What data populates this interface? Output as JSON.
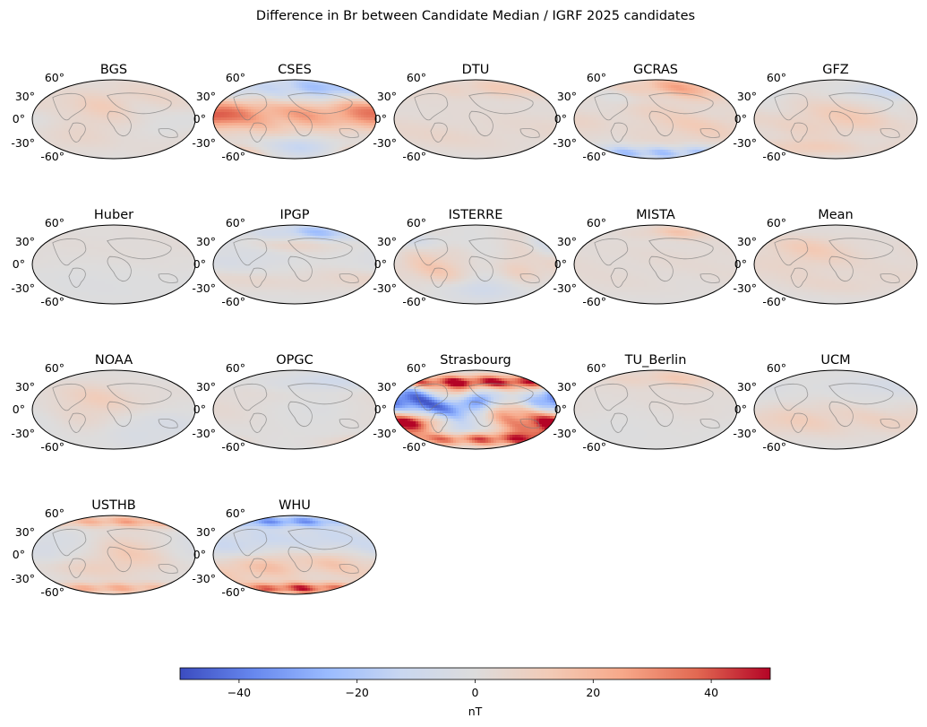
{
  "chart_data": {
    "type": "heatmap",
    "projection": "mollweide",
    "title": "Difference in Br between Candidate Median / IGRF 2025 candidates",
    "lat_labels": [
      "60°",
      "30°",
      "0°",
      "-30°",
      "-60°"
    ],
    "colorbar": {
      "label": "nT",
      "vmin": -50,
      "vmax": 50,
      "ticks": [
        -40,
        -20,
        0,
        20,
        40
      ],
      "tick_labels": [
        "−40",
        "−20",
        "0",
        "20",
        "40"
      ],
      "colormap": "coolwarm",
      "stops": [
        "#3b4cc0",
        "#6788ee",
        "#9abbff",
        "#c9d7f0",
        "#dddcdc",
        "#f2cbb7",
        "#f7a889",
        "#e26952",
        "#b40426"
      ]
    },
    "panels": [
      {
        "name": "BGS",
        "max_abs_nT": 10,
        "features": [
          [
            90,
            0.55,
            0.85,
            0.35,
            0.08,
            6
          ],
          [
            55,
            0.3,
            0.2,
            0.2,
            0.05,
            -4
          ],
          [
            130,
            -0.1,
            0.4,
            0.3,
            0.07,
            -5
          ],
          [
            0,
            0,
            0.5,
            0.4,
            0.05,
            4
          ],
          [
            200,
            -0.6,
            0.6,
            0.3,
            0.05,
            5
          ],
          [
            -40,
            0.2,
            0.4,
            0.3,
            0.05,
            4
          ]
        ]
      },
      {
        "name": "CSES",
        "max_abs_nT": 25,
        "features": [
          [
            30,
            0.75,
            0.8,
            0.25,
            0.12,
            -16
          ],
          [
            120,
            0.8,
            0.5,
            0.2,
            0.05,
            -10
          ],
          [
            240,
            0.15,
            1.6,
            0.35,
            0.1,
            14
          ],
          [
            150,
            0.25,
            0.5,
            0.25,
            0.07,
            12
          ],
          [
            -10,
            0,
            0.4,
            0.3,
            0.05,
            9
          ],
          [
            190,
            -0.88,
            0.35,
            0.12,
            0.1,
            22
          ],
          [
            10,
            -0.7,
            0.3,
            0.2,
            0.05,
            -12
          ],
          [
            200,
            0.1,
            0.3,
            0.2,
            0.05,
            16
          ]
        ]
      },
      {
        "name": "DTU",
        "max_abs_nT": 8,
        "features": [
          [
            40,
            0.8,
            0.8,
            0.2,
            0.12,
            7
          ],
          [
            110,
            0.8,
            0.4,
            0.15,
            0.05,
            5
          ],
          [
            180,
            -0.1,
            1.6,
            0.5,
            0.04,
            3
          ],
          [
            300,
            -0.5,
            0.8,
            0.3,
            0.04,
            3
          ]
        ]
      },
      {
        "name": "GCRAS",
        "max_abs_nT": 25,
        "features": [
          [
            50,
            0.82,
            0.55,
            0.18,
            0.1,
            20
          ],
          [
            20,
            -0.85,
            1.2,
            0.12,
            0.15,
            -22
          ],
          [
            90,
            -0.1,
            0.6,
            0.5,
            0.06,
            10
          ],
          [
            -80,
            0.6,
            0.4,
            0.2,
            0.06,
            -8
          ],
          [
            210,
            0.4,
            0.8,
            0.3,
            0.05,
            6
          ],
          [
            150,
            0.25,
            0.4,
            0.2,
            0.05,
            -8
          ]
        ]
      },
      {
        "name": "GFZ",
        "max_abs_nT": 15,
        "features": [
          [
            190,
            0.2,
            2,
            0.3,
            0.08,
            -6
          ],
          [
            -60,
            0.1,
            0.8,
            0.4,
            0.07,
            10
          ],
          [
            40,
            0.05,
            0.5,
            0.3,
            0.05,
            8
          ],
          [
            120,
            0.7,
            0.4,
            0.15,
            0.05,
            -10
          ],
          [
            250,
            -0.75,
            0.6,
            0.15,
            0.05,
            12
          ]
        ]
      },
      {
        "name": "Huber",
        "max_abs_nT": 6,
        "features": [
          [
            120,
            0.3,
            2,
            0.6,
            0.05,
            2
          ],
          [
            300,
            -0.4,
            1,
            0.4,
            0.05,
            -2
          ]
        ]
      },
      {
        "name": "IPGP",
        "max_abs_nT": 25,
        "features": [
          [
            70,
            0.8,
            0.5,
            0.15,
            0.1,
            -22
          ],
          [
            20,
            0.55,
            0.4,
            0.15,
            0.05,
            10
          ],
          [
            160,
            -0.4,
            1,
            0.2,
            0.05,
            6
          ],
          [
            240,
            0.1,
            0.4,
            0.3,
            0.05,
            -5
          ]
        ]
      },
      {
        "name": "ISTERRE",
        "max_abs_nT": 20,
        "features": [
          [
            240,
            0.2,
            0.6,
            0.4,
            0.08,
            12
          ],
          [
            0,
            0,
            0.5,
            0.5,
            0.06,
            -10
          ],
          [
            95,
            0.1,
            0.25,
            0.5,
            0.07,
            14
          ],
          [
            150,
            0.3,
            0.3,
            0.25,
            0.07,
            -12
          ],
          [
            300,
            -0.2,
            0.3,
            0.3,
            0.07,
            12
          ],
          [
            200,
            0.6,
            0.4,
            0.15,
            0.05,
            -8
          ],
          [
            50,
            -0.6,
            0.5,
            0.2,
            0.05,
            -6
          ]
        ]
      },
      {
        "name": "MISTA",
        "max_abs_nT": 15,
        "features": [
          [
            60,
            0.82,
            0.4,
            0.12,
            0.1,
            12
          ],
          [
            100,
            0.2,
            1.5,
            0.4,
            0.05,
            3
          ],
          [
            250,
            -0.5,
            0.8,
            0.3,
            0.04,
            2
          ]
        ]
      },
      {
        "name": "Mean",
        "max_abs_nT": 10,
        "features": [
          [
            190,
            0.1,
            1.6,
            0.5,
            0.05,
            3
          ],
          [
            -60,
            0.2,
            0.4,
            0.3,
            0.05,
            6
          ],
          [
            40,
            -0.5,
            0.6,
            0.2,
            0.04,
            4
          ],
          [
            300,
            0.5,
            0.4,
            0.2,
            0.05,
            4
          ]
        ]
      },
      {
        "name": "NOAA",
        "max_abs_nT": 10,
        "features": [
          [
            0,
            0.2,
            0.5,
            0.4,
            0.06,
            6
          ],
          [
            150,
            0.1,
            0.6,
            0.5,
            0.06,
            -4
          ],
          [
            210,
            0.3,
            0.6,
            0.3,
            0.05,
            5
          ],
          [
            60,
            -0.5,
            0.4,
            0.3,
            0.05,
            -4
          ],
          [
            300,
            -0.1,
            0.3,
            0.4,
            0.05,
            4
          ]
        ]
      },
      {
        "name": "OPGC",
        "max_abs_nT": 18,
        "features": [
          [
            160,
            -0.83,
            0.3,
            0.1,
            0.08,
            15
          ],
          [
            70,
            0.7,
            0.5,
            0.15,
            0.05,
            -8
          ],
          [
            250,
            0.1,
            1,
            0.4,
            0.05,
            4
          ],
          [
            20,
            0,
            0.5,
            0.3,
            0.04,
            -4
          ]
        ]
      },
      {
        "name": "Strasbourg",
        "max_abs_nT": 60,
        "features": [
          [
            80,
            0.1,
            0.3,
            0.3,
            0.12,
            45
          ],
          [
            -60,
            -0.1,
            0.3,
            0.4,
            0.12,
            -45
          ],
          [
            20,
            0.3,
            0.2,
            0.2,
            0.12,
            -40
          ],
          [
            120,
            0.2,
            0.3,
            0.2,
            0.12,
            -40
          ],
          [
            160,
            -0.4,
            0.3,
            0.2,
            0.12,
            45
          ],
          [
            220,
            0.3,
            0.3,
            0.25,
            0.12,
            -42
          ],
          [
            260,
            -0.3,
            0.3,
            0.2,
            0.12,
            45
          ],
          [
            300,
            0.4,
            0.3,
            0.2,
            0.12,
            40
          ],
          [
            0,
            0.7,
            1.4,
            0.12,
            0.15,
            45
          ],
          [
            0,
            -0.75,
            1.4,
            0.12,
            0.15,
            40
          ]
        ]
      },
      {
        "name": "TU_Berlin",
        "max_abs_nT": 12,
        "features": [
          [
            50,
            0.8,
            0.6,
            0.15,
            0.1,
            10
          ],
          [
            120,
            0.1,
            1.5,
            0.5,
            0.05,
            3
          ],
          [
            250,
            -0.3,
            0.8,
            0.4,
            0.05,
            -2
          ]
        ]
      },
      {
        "name": "UCM",
        "max_abs_nT": 10,
        "features": [
          [
            0,
            -0.2,
            1.2,
            0.3,
            0.08,
            6
          ],
          [
            220,
            -0.3,
            0.8,
            0.3,
            0.05,
            5
          ],
          [
            100,
            0.6,
            0.5,
            0.2,
            0.05,
            -4
          ],
          [
            150,
            0.1,
            0.5,
            0.3,
            0.05,
            -3
          ]
        ]
      },
      {
        "name": "USTHB",
        "max_abs_nT": 25,
        "features": [
          [
            80,
            0.85,
            1.2,
            0.1,
            0.15,
            22
          ],
          [
            -20,
            -0.85,
            0.8,
            0.1,
            0.15,
            20
          ],
          [
            40,
            0.05,
            0.4,
            0.4,
            0.05,
            12
          ],
          [
            200,
            0.2,
            0.6,
            0.3,
            0.05,
            -6
          ],
          [
            300,
            -0.3,
            0.4,
            0.2,
            0.04,
            6
          ]
        ]
      },
      {
        "name": "WHU",
        "max_abs_nT": 45,
        "features": [
          [
            10,
            -0.85,
            0.6,
            0.1,
            0.15,
            40
          ],
          [
            -20,
            0.85,
            0.6,
            0.1,
            0.15,
            -30
          ],
          [
            60,
            0.3,
            0.3,
            0.3,
            0.08,
            -14
          ],
          [
            100,
            -0.1,
            0.3,
            0.3,
            0.08,
            18
          ],
          [
            160,
            0.1,
            0.3,
            0.3,
            0.08,
            -12
          ],
          [
            220,
            -0.4,
            0.3,
            0.3,
            0.08,
            14
          ],
          [
            280,
            0.3,
            0.3,
            0.3,
            0.08,
            -12
          ],
          [
            330,
            -0.2,
            0.3,
            0.3,
            0.08,
            14
          ]
        ]
      }
    ]
  }
}
